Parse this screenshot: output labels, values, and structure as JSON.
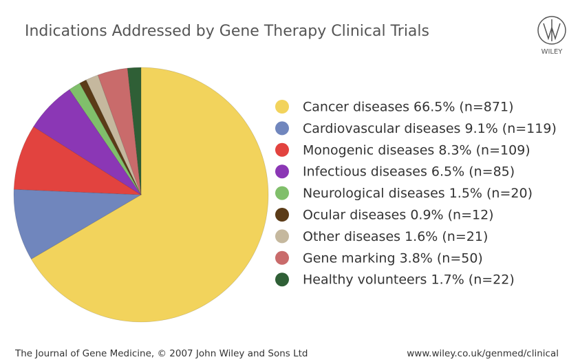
{
  "chart_data": {
    "type": "pie",
    "title": "Indications Addressed by Gene Therapy Clinical Trials",
    "categories": [
      "Cancer diseases 66.5% (n=871)",
      "Cardiovascular diseases 9.1% (n=119)",
      "Monogenic diseases 8.3% (n=109)",
      "Infectious diseases 6.5% (n=85)",
      "Neurological diseases 1.5% (n=20)",
      "Ocular diseases 0.9% (n=12)",
      "Other diseases 1.6% (n=21)",
      "Gene marking 3.8% (n=50)",
      "Healthy volunteers 1.7% (n=22)"
    ],
    "values": [
      66.5,
      9.1,
      8.3,
      6.5,
      1.5,
      0.9,
      1.6,
      3.8,
      1.7
    ],
    "colors": [
      "#f2d35c",
      "#7086bd",
      "#e2433f",
      "#8b37b5",
      "#80bf6b",
      "#5b3b17",
      "#c5b89e",
      "#c96b6b",
      "#2f5f36"
    ],
    "legend": "right",
    "logo_text": "WILEY",
    "footer_left": "The Journal of Gene Medicine, © 2007 John Wiley and Sons Ltd",
    "footer_right": "www.wiley.co.uk/genmed/clinical"
  }
}
